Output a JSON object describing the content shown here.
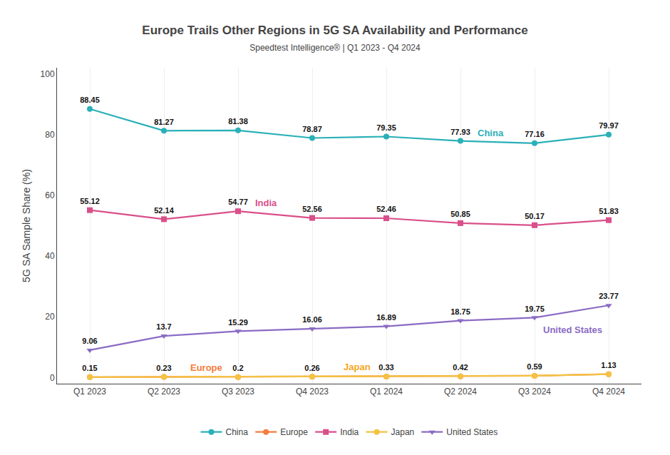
{
  "chart_data": {
    "type": "line",
    "title": "Europe Trails Other Regions in 5G SA Availability and Performance",
    "subtitle": "Speedtest Intelligence® | Q1 2023 - Q4 2024",
    "y_label": "5G SA Sample Share (%)",
    "categories": [
      "Q1 2023",
      "Q2 2023",
      "Q3 2023",
      "Q4 2023",
      "Q1 2024",
      "Q2 2024",
      "Q3 2024",
      "Q4 2024"
    ],
    "series": [
      {
        "name": "China",
        "color": "#2ab0b8",
        "marker": "circle",
        "data_labels": true,
        "values": [
          88.45,
          81.27,
          81.38,
          78.87,
          79.35,
          77.93,
          77.16,
          79.97
        ]
      },
      {
        "name": "Europe",
        "color": "#f47c3c",
        "marker": "circle",
        "data_labels": true,
        "values": [
          0.15,
          0.23,
          0.2,
          0.26,
          0.33,
          0.42,
          0.59,
          1.13
        ]
      },
      {
        "name": "India",
        "color": "#d94f8a",
        "marker": "square",
        "data_labels": true,
        "values": [
          55.12,
          52.14,
          54.77,
          52.56,
          52.46,
          50.85,
          50.17,
          51.83
        ]
      },
      {
        "name": "Japan",
        "color": "#f5c242",
        "marker": "circle",
        "data_labels": false,
        "values": [
          0.15,
          0.23,
          0.2,
          0.26,
          0.33,
          0.42,
          0.59,
          1.13
        ]
      },
      {
        "name": "United States",
        "color": "#8b6bc4",
        "marker": "triangle-down",
        "data_labels": true,
        "values": [
          9.06,
          13.7,
          15.29,
          16.06,
          16.89,
          18.75,
          19.75,
          23.77
        ]
      }
    ],
    "annotations": [
      {
        "text": "China",
        "x": "Q2 2024",
        "y": 77.93,
        "color": "#2ab0b8"
      },
      {
        "text": "India",
        "x": "Q3 2023",
        "y": 54.77,
        "color": "#d94f8a"
      },
      {
        "text": "United States",
        "x": "Q3 2024",
        "y": 19.75,
        "color": "#8b6bc4"
      },
      {
        "text": "Europe",
        "x": "Q3 2023",
        "y": 0.2,
        "color": "#f47c3c"
      },
      {
        "text": "Japan",
        "x": "Q1 2024",
        "y": 0.33,
        "color": "#f5a623"
      }
    ],
    "ylim": [
      -2,
      102
    ],
    "yticks": [
      0,
      20,
      40,
      60,
      80,
      100
    ],
    "grid": "x",
    "legend": "bottom"
  }
}
